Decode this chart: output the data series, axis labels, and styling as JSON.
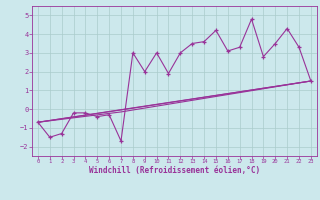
{
  "xlabel": "Windchill (Refroidissement éolien,°C)",
  "xlim": [
    -0.5,
    23.5
  ],
  "ylim": [
    -2.5,
    5.5
  ],
  "yticks": [
    -2,
    -1,
    0,
    1,
    2,
    3,
    4,
    5
  ],
  "xticks": [
    0,
    1,
    2,
    3,
    4,
    5,
    6,
    7,
    8,
    9,
    10,
    11,
    12,
    13,
    14,
    15,
    16,
    17,
    18,
    19,
    20,
    21,
    22,
    23
  ],
  "bg_color": "#cce8ec",
  "line_color": "#993399",
  "grid_color": "#aacccc",
  "main_x": [
    0,
    1,
    2,
    3,
    4,
    5,
    6,
    7,
    8,
    9,
    10,
    11,
    12,
    13,
    14,
    15,
    16,
    17,
    18,
    19,
    20,
    21,
    22,
    23
  ],
  "main_y": [
    -0.7,
    -1.5,
    -1.3,
    -0.2,
    -0.2,
    -0.4,
    -0.3,
    -1.7,
    3.0,
    2.0,
    3.0,
    1.9,
    3.0,
    3.5,
    3.6,
    4.2,
    3.1,
    3.3,
    4.8,
    2.8,
    3.5,
    4.3,
    3.3,
    1.5
  ],
  "line1_x": [
    0,
    23
  ],
  "line1_y": [
    -0.7,
    1.5
  ],
  "line2_x": [
    0,
    7,
    23
  ],
  "line2_y": [
    -0.7,
    -0.15,
    1.5
  ],
  "line3_x": [
    0,
    8,
    23
  ],
  "line3_y": [
    -0.7,
    0.05,
    1.5
  ]
}
